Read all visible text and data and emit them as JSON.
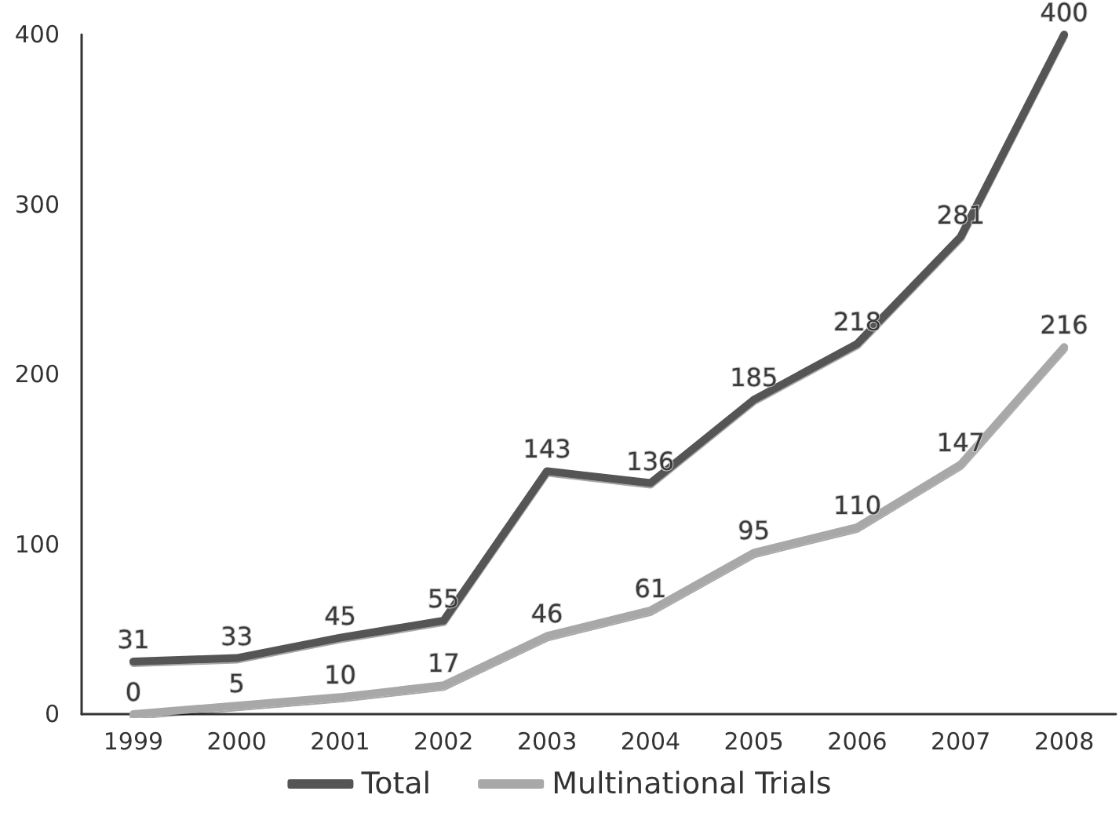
{
  "chart_data": {
    "type": "line",
    "categories": [
      "1999",
      "2000",
      "2001",
      "2002",
      "2003",
      "2004",
      "2005",
      "2006",
      "2007",
      "2008"
    ],
    "series": [
      {
        "name": "Total",
        "color": "#555555",
        "values": [
          31,
          33,
          45,
          55,
          143,
          136,
          185,
          218,
          281,
          400
        ]
      },
      {
        "name": "Multinational Trials",
        "color": "#a8a8a8",
        "values": [
          0,
          5,
          10,
          17,
          46,
          61,
          95,
          110,
          147,
          216
        ]
      }
    ],
    "ylim": [
      0,
      400
    ],
    "yticks": [
      0,
      100,
      200,
      300,
      400
    ],
    "grid": false,
    "legend": "bottom",
    "marker": "none",
    "line_style": "solid",
    "data_labels": true
  }
}
